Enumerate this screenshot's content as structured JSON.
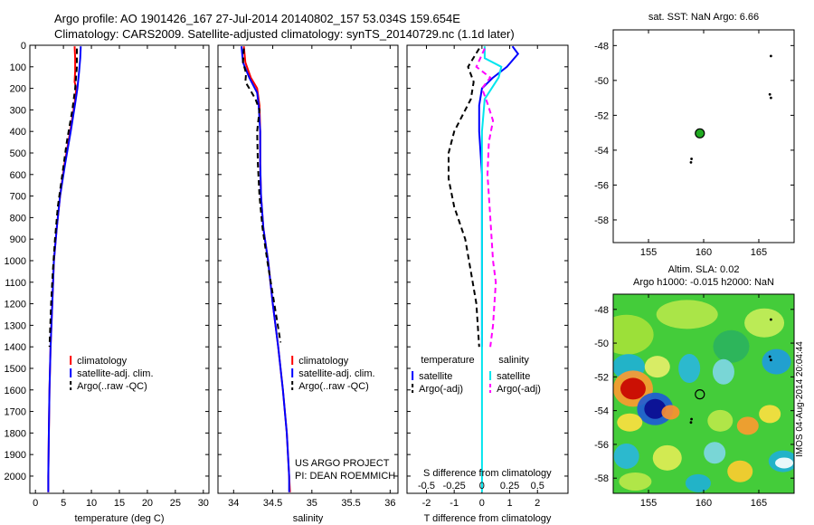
{
  "header": {
    "line1": "Argo profile: AO 1901426_167 27-Jul-2014 20140802_157 53.034S 159.654E",
    "line2": "Climatology: CARS2009. Satellite-adjusted climatology: synTS_20140729.nc (1.1d later)"
  },
  "chart_data": [
    {
      "id": "temperature",
      "type": "line",
      "xlabel": "temperature (deg C)",
      "xlim": [
        -1,
        31
      ],
      "xticks": [
        0,
        5,
        10,
        15,
        20,
        25,
        30
      ],
      "ylim": [
        2080,
        0
      ],
      "yticks": [
        0,
        100,
        200,
        300,
        400,
        500,
        600,
        700,
        800,
        900,
        1000,
        1100,
        1200,
        1300,
        1400,
        1500,
        1600,
        1700,
        1800,
        1900,
        2000
      ],
      "legend": [
        "climatology",
        "satellite-adj. clim.",
        "Argo(..raw -QC)"
      ],
      "legend_position": "lower-center",
      "series": [
        {
          "name": "climatology",
          "color": "#ff0000",
          "style": "solid",
          "points": [
            [
              7.0,
              5
            ],
            [
              7.1,
              60
            ],
            [
              7.1,
              120
            ],
            [
              7.0,
              170
            ],
            [
              7.3,
              200
            ],
            [
              7.0,
              270
            ],
            [
              6.2,
              400
            ],
            [
              5.2,
              550
            ],
            [
              4.4,
              700
            ],
            [
              3.8,
              850
            ],
            [
              3.3,
              1000
            ],
            [
              3.0,
              1200
            ],
            [
              2.7,
              1400
            ],
            [
              2.5,
              1600
            ],
            [
              2.4,
              1800
            ],
            [
              2.3,
              2000
            ],
            [
              2.3,
              2075
            ]
          ]
        },
        {
          "name": "satellite-adj. clim.",
          "color": "#0000ff",
          "style": "solid",
          "points": [
            [
              8.1,
              5
            ],
            [
              8.0,
              60
            ],
            [
              7.8,
              120
            ],
            [
              7.5,
              200
            ],
            [
              7.1,
              270
            ],
            [
              6.3,
              400
            ],
            [
              5.3,
              550
            ],
            [
              4.4,
              700
            ],
            [
              3.8,
              850
            ],
            [
              3.3,
              1000
            ],
            [
              3.0,
              1200
            ],
            [
              2.7,
              1400
            ],
            [
              2.5,
              1600
            ],
            [
              2.4,
              1800
            ],
            [
              2.3,
              2000
            ],
            [
              2.3,
              2075
            ]
          ]
        },
        {
          "name": "Argo(..raw -QC)",
          "color": "#000000",
          "style": "dashed",
          "points": [
            [
              7.4,
              15
            ],
            [
              7.4,
              100
            ],
            [
              7.1,
              200
            ],
            [
              6.6,
              300
            ],
            [
              5.6,
              450
            ],
            [
              4.8,
              600
            ],
            [
              4.0,
              750
            ],
            [
              3.5,
              900
            ],
            [
              3.1,
              1050
            ],
            [
              2.8,
              1200
            ],
            [
              2.5,
              1400
            ]
          ]
        }
      ]
    },
    {
      "id": "salinity",
      "type": "line",
      "xlabel": "salinity",
      "xlim": [
        33.8,
        36.1
      ],
      "xticks": [
        34,
        34.5,
        35,
        35.5,
        36
      ],
      "ylim": [
        2080,
        0
      ],
      "yticks": [
        0,
        100,
        200,
        300,
        400,
        500,
        600,
        700,
        800,
        900,
        1000,
        1100,
        1200,
        1300,
        1400,
        1500,
        1600,
        1700,
        1800,
        1900,
        2000
      ],
      "legend": [
        "climatology",
        "satellite-adj. clim.",
        "Argo(..raw -QC)"
      ],
      "legend_position": "lower-center",
      "annotation": [
        "US ARGO PROJECT",
        "PI: DEAN ROEMMICH"
      ],
      "series": [
        {
          "name": "climatology",
          "color": "#ff0000",
          "style": "solid",
          "points": [
            [
              34.13,
              5
            ],
            [
              34.15,
              80
            ],
            [
              34.22,
              150
            ],
            [
              34.3,
              200
            ],
            [
              34.33,
              280
            ],
            [
              34.34,
              400
            ],
            [
              34.34,
              550
            ],
            [
              34.35,
              700
            ],
            [
              34.38,
              850
            ],
            [
              34.44,
              1000
            ],
            [
              34.5,
              1200
            ],
            [
              34.57,
              1400
            ],
            [
              34.63,
              1600
            ],
            [
              34.68,
              1800
            ],
            [
              34.71,
              2000
            ],
            [
              34.72,
              2075
            ]
          ]
        },
        {
          "name": "satellite-adj. clim.",
          "color": "#0000ff",
          "style": "solid",
          "points": [
            [
              34.1,
              5
            ],
            [
              34.12,
              80
            ],
            [
              34.2,
              150
            ],
            [
              34.3,
              220
            ],
            [
              34.32,
              280
            ],
            [
              34.34,
              400
            ],
            [
              34.34,
              550
            ],
            [
              34.35,
              700
            ],
            [
              34.38,
              850
            ],
            [
              34.44,
              1000
            ],
            [
              34.5,
              1200
            ],
            [
              34.57,
              1400
            ],
            [
              34.63,
              1600
            ],
            [
              34.68,
              1800
            ],
            [
              34.71,
              2000
            ],
            [
              34.71,
              2075
            ]
          ]
        },
        {
          "name": "Argo(..raw -QC)",
          "color": "#000000",
          "style": "dashed",
          "points": [
            [
              34.13,
              15
            ],
            [
              34.12,
              80
            ],
            [
              34.16,
              130
            ],
            [
              34.15,
              170
            ],
            [
              34.2,
              200
            ],
            [
              34.28,
              250
            ],
            [
              34.33,
              300
            ],
            [
              34.3,
              400
            ],
            [
              34.31,
              550
            ],
            [
              34.33,
              700
            ],
            [
              34.37,
              850
            ],
            [
              34.43,
              1000
            ],
            [
              34.52,
              1200
            ],
            [
              34.6,
              1380
            ]
          ]
        }
      ]
    },
    {
      "id": "differences",
      "type": "line",
      "xlabel": "T difference from climatology",
      "xlabel_top": "S difference from climatology",
      "xlim": [
        -2.7,
        3.1
      ],
      "xticks": [
        -2,
        -1,
        0,
        1,
        2
      ],
      "s_ticks_labels": [
        "-0.5",
        "-0.25",
        "0",
        "0.25",
        "0.5"
      ],
      "s_ticks_positions_T_units": [
        -2,
        -1,
        0,
        1,
        2
      ],
      "ylim": [
        2080,
        0
      ],
      "legend_temperature_title": "temperature",
      "legend_salinity_title": "salinity",
      "legend": [
        "satellite",
        "Argo(-adj)",
        "satellite",
        "Argo(-adj)"
      ],
      "series": [
        {
          "name": "satellite",
          "group": "temperature",
          "color": "#0000ff",
          "style": "solid",
          "points": [
            [
              1.1,
              5
            ],
            [
              1.3,
              40
            ],
            [
              0.9,
              100
            ],
            [
              0.4,
              150
            ],
            [
              0.0,
              200
            ],
            [
              -0.1,
              280
            ],
            [
              -0.1,
              400
            ],
            [
              0.0,
              600
            ],
            [
              0.0,
              800
            ],
            [
              0.0,
              1000
            ],
            [
              0.0,
              1200
            ],
            [
              0.0,
              1400
            ]
          ]
        },
        {
          "name": "Argo(-adj)",
          "group": "temperature",
          "color": "#000000",
          "style": "dashed",
          "points": [
            [
              -0.1,
              15
            ],
            [
              -0.5,
              100
            ],
            [
              -0.3,
              170
            ],
            [
              -0.4,
              250
            ],
            [
              -1.0,
              400
            ],
            [
              -1.2,
              500
            ],
            [
              -1.2,
              620
            ],
            [
              -1.0,
              750
            ],
            [
              -0.6,
              900
            ],
            [
              -0.4,
              1050
            ],
            [
              -0.2,
              1200
            ],
            [
              -0.1,
              1400
            ]
          ]
        },
        {
          "name": "satellite",
          "group": "salinity",
          "color": "#00e5ee",
          "style": "solid",
          "points": [
            [
              0.1,
              5
            ],
            [
              0.1,
              60
            ],
            [
              0.7,
              100
            ],
            [
              0.6,
              150
            ],
            [
              0.1,
              250
            ],
            [
              0.0,
              400
            ],
            [
              0.0,
              700
            ],
            [
              0.0,
              1000
            ],
            [
              0.0,
              1500
            ],
            [
              0.0,
              2075
            ]
          ]
        },
        {
          "name": "Argo(-adj)",
          "group": "salinity",
          "color": "#ff00ff",
          "style": "dashed",
          "points": [
            [
              0.1,
              15
            ],
            [
              -0.2,
              100
            ],
            [
              0.3,
              150
            ],
            [
              0.0,
              200
            ],
            [
              0.2,
              270
            ],
            [
              0.4,
              350
            ],
            [
              0.25,
              450
            ],
            [
              0.2,
              600
            ],
            [
              0.3,
              800
            ],
            [
              0.4,
              1000
            ],
            [
              0.5,
              1100
            ],
            [
              0.4,
              1300
            ],
            [
              0.3,
              1400
            ]
          ]
        }
      ]
    }
  ],
  "map_top": {
    "title": "sat. SST: NaN Argo: 6.66",
    "xlim": [
      151.8,
      168.2
    ],
    "ylim": [
      -59.3,
      -47.1
    ],
    "xticks": [
      155,
      160,
      165
    ],
    "yticks": [
      -48,
      -50,
      -52,
      -54,
      -56,
      -58
    ],
    "float_position": {
      "lon": 159.654,
      "lat": -53.034
    },
    "marker_color": "#22aa22"
  },
  "map_bottom": {
    "title_line1": "Altim. SLA: 0.02",
    "title_line2": "Argo h1000: -0.015 h2000: NaN",
    "xlim": [
      151.8,
      168.2
    ],
    "ylim": [
      -58.9,
      -47.1
    ],
    "xticks": [
      155,
      160,
      165
    ],
    "yticks": [
      -48,
      -50,
      -52,
      -54,
      -56,
      -58
    ],
    "float_position": {
      "lon": 159.654,
      "lat": -53.034
    },
    "side_label": "IMOS 04-Aug-2014 20:04:44"
  }
}
